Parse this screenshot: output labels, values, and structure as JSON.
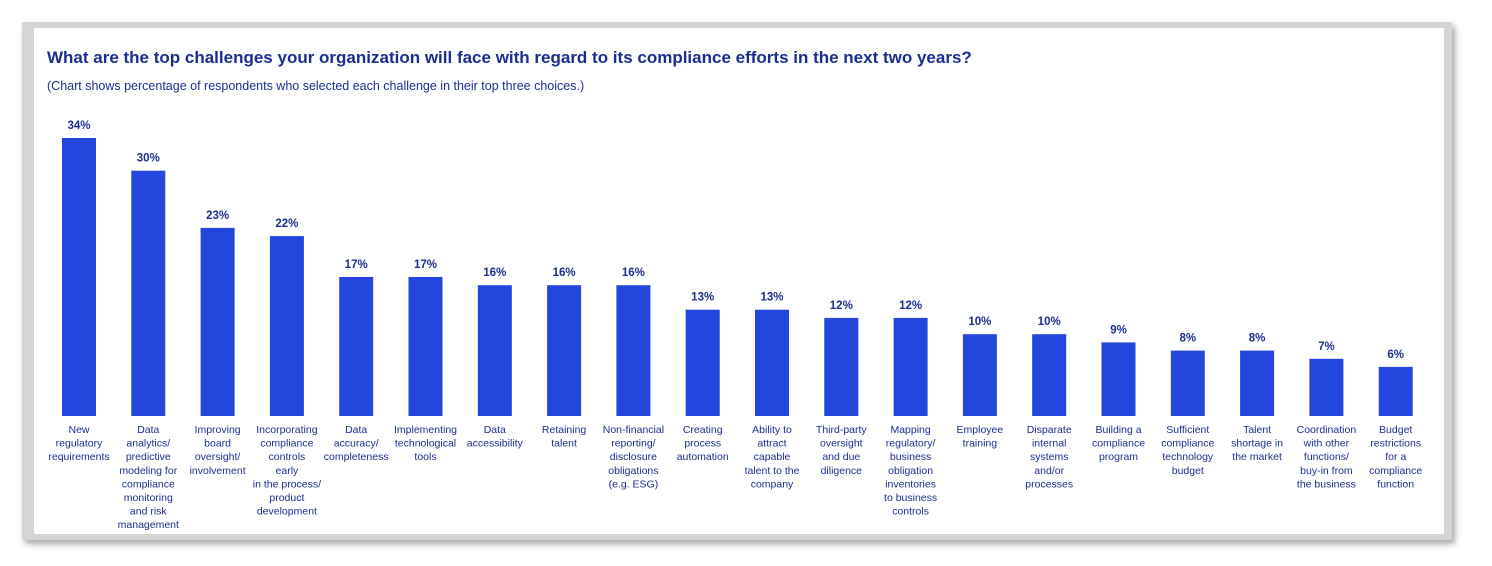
{
  "chart_data": {
    "type": "bar",
    "title": "What are the top challenges your organization will face with regard to its compliance efforts in the next two years?",
    "subtitle": "(Chart shows percentage of respondents who selected each challenge in their top three choices.)",
    "bar_color": "#2346dc",
    "text_color": "#1a2e8f",
    "value_suffix": "%",
    "ylim": [
      0,
      34
    ],
    "categories": [
      [
        "New",
        "regulatory",
        "requirements"
      ],
      [
        "Data",
        "analytics/",
        "predictive",
        "modeling for",
        "compliance",
        "monitoring",
        "and risk",
        "management"
      ],
      [
        "Improving",
        "board",
        "oversight/",
        "involvement"
      ],
      [
        "Incorporating",
        "compliance",
        "controls",
        "early",
        "in the process/",
        "product",
        "development"
      ],
      [
        "Data",
        "accuracy/",
        "completeness"
      ],
      [
        "Implementing",
        "technological",
        "tools"
      ],
      [
        "Data",
        "accessibility"
      ],
      [
        "Retaining",
        "talent"
      ],
      [
        "Non-financial",
        "reporting/",
        "disclosure",
        "obligations",
        "(e.g. ESG)"
      ],
      [
        "Creating",
        "process",
        "automation"
      ],
      [
        "Ability to",
        "attract",
        "capable",
        "talent to the",
        "company"
      ],
      [
        "Third-party",
        "oversight",
        "and due",
        "diligence"
      ],
      [
        "Mapping",
        "regulatory/",
        "business",
        "obligation",
        "inventories",
        "to business",
        "controls"
      ],
      [
        "Employee",
        "training"
      ],
      [
        "Disparate",
        "internal",
        "systems",
        "and/or",
        "processes"
      ],
      [
        "Building a",
        "compliance",
        "program"
      ],
      [
        "Sufficient",
        "compliance",
        "technology",
        "budget"
      ],
      [
        "Talent",
        "shortage in",
        "the market"
      ],
      [
        "Coordination",
        "with other",
        "functions/",
        "buy-in from",
        "the business"
      ],
      [
        "Budget",
        "restrictions",
        "for a",
        "compliance",
        "function"
      ]
    ],
    "values": [
      34,
      30,
      23,
      22,
      17,
      17,
      16,
      16,
      16,
      13,
      13,
      12,
      12,
      10,
      10,
      9,
      8,
      8,
      7,
      6
    ]
  }
}
